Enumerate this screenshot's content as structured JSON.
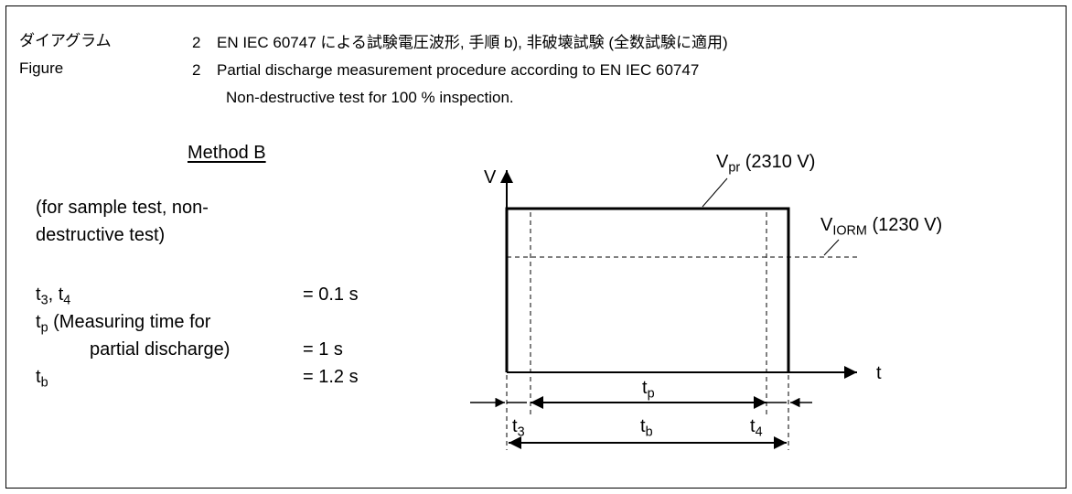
{
  "header": {
    "jp_label": "ダイアグラム",
    "en_label": "Figure",
    "jp_number": "2",
    "en_number": "2",
    "jp_caption": "EN IEC 60747 による試験電圧波形, 手順 b), 非破壊試験 (全数試験に適用)",
    "en_caption_line1": "Partial discharge measurement procedure according to EN IEC 60747",
    "en_caption_line2": "Non-destructive test for 100 % inspection."
  },
  "method": {
    "title": "Method B",
    "note_line1": "(for sample test, non-",
    "note_line2": "destructive test)"
  },
  "params": {
    "t34_a": "t",
    "t34_a_sub": "3",
    "t34_sep": ", t",
    "t34_b_sub": "4",
    "t34_value": "= 0.1 s",
    "tp_main": "t",
    "tp_sub": "p",
    "tp_desc1": " (Measuring time for",
    "tp_desc2": "partial discharge)",
    "tp_value": "= 1 s",
    "tb_main": "t",
    "tb_sub": "b",
    "tb_value": "= 1.2 s"
  },
  "diagram": {
    "y_axis_label": "V",
    "x_axis_label": "t",
    "vpr_main": "V",
    "vpr_sub": "pr",
    "vpr_value": " (2310 V)",
    "viorm_main": "V",
    "viorm_sub": "IORM",
    "viorm_value": " (1230 V)",
    "tp_main": "t",
    "tp_sub": "p",
    "tb_main": "t",
    "tb_sub": "b",
    "t3_main": "t",
    "t3_sub": "3",
    "t4_main": "t",
    "t4_sub": "4"
  }
}
